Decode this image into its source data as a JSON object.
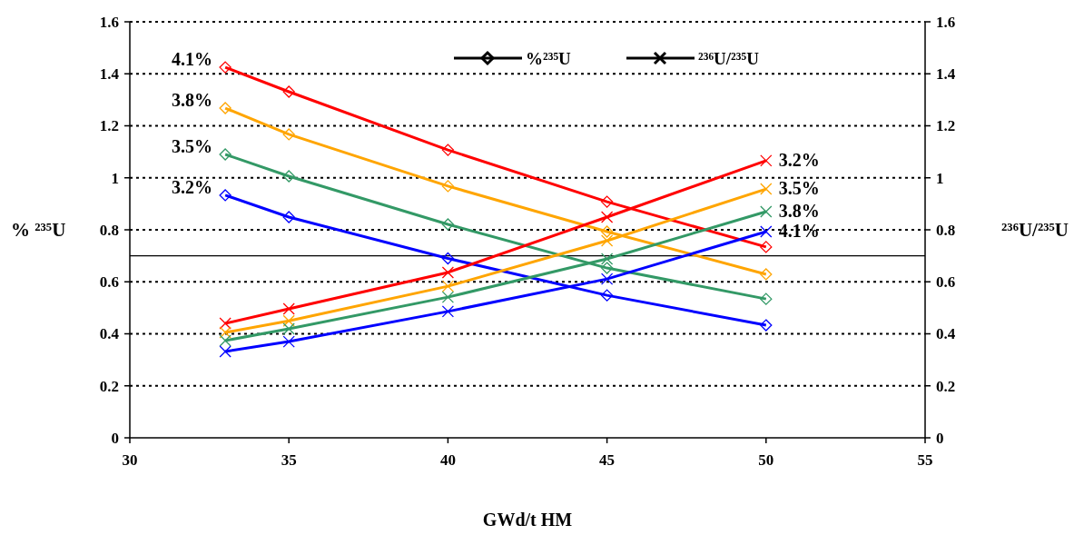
{
  "chart_data": {
    "type": "line",
    "xlabel": "GWd/t HM",
    "ylabel": "% ²³⁵U",
    "y2label": "²³⁶U/²³⁵U",
    "x": [
      33,
      35,
      40,
      45,
      50
    ],
    "xlim": [
      30,
      55
    ],
    "xticks": [
      30,
      35,
      40,
      45,
      50,
      55
    ],
    "ylim": [
      0,
      1.6
    ],
    "yticks": [
      0,
      0.2,
      0.4,
      0.6,
      0.8,
      1,
      1.2,
      1.4,
      1.6
    ],
    "y2lim": [
      0,
      1.6
    ],
    "y2ticks": [
      0,
      0.2,
      0.4,
      0.6,
      0.8,
      1,
      1.2,
      1.4,
      1.6
    ],
    "grid": "y",
    "series": [
      {
        "color": "#ff0000",
        "marker": "diamond",
        "values": [
          1.425,
          1.331,
          1.107,
          0.908,
          0.734
        ]
      },
      {
        "color": "#ffa500",
        "marker": "diamond",
        "values": [
          1.268,
          1.167,
          0.968,
          0.793,
          0.629
        ]
      },
      {
        "color": "#339966",
        "marker": "diamond",
        "values": [
          1.09,
          1.006,
          0.821,
          0.653,
          0.534
        ]
      },
      {
        "color": "#0000ff",
        "marker": "diamond",
        "values": [
          0.933,
          0.849,
          0.69,
          0.548,
          0.433
        ]
      },
      {
        "color": "#ff0000",
        "marker": "cross",
        "values": [
          0.44,
          0.496,
          0.636,
          0.849,
          1.066
        ]
      },
      {
        "color": "#ffa500",
        "marker": "cross",
        "values": [
          0.405,
          0.45,
          0.583,
          0.758,
          0.957
        ]
      },
      {
        "color": "#339966",
        "marker": "cross",
        "values": [
          0.374,
          0.419,
          0.541,
          0.688,
          0.87
        ]
      },
      {
        "color": "#0000ff",
        "marker": "cross",
        "values": [
          0.332,
          0.37,
          0.486,
          0.611,
          0.793
        ]
      }
    ],
    "ref_lines": [
      {
        "axis": "y",
        "value": 0.7,
        "color": "#000000"
      }
    ],
    "annotations": [
      "%²³⁵U",
      "²³⁶U/²³⁵U",
      "4.1%",
      "3.8%",
      "3.5%",
      "3.2%",
      "3.2%",
      "3.5%",
      "3.8%",
      "4.1%"
    ]
  }
}
